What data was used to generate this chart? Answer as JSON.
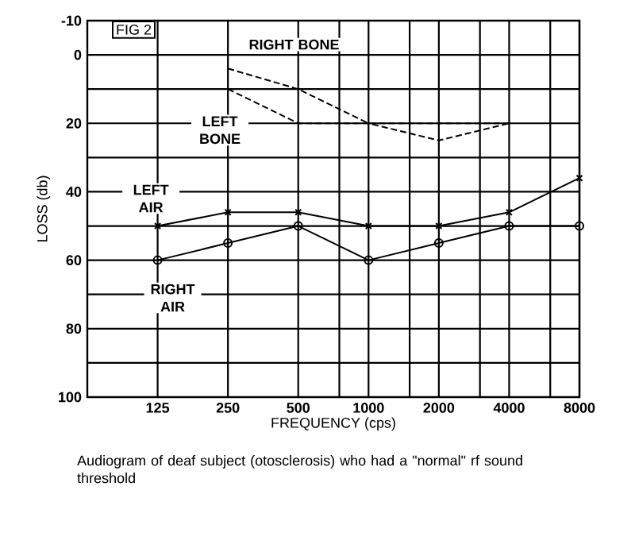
{
  "chart_data": {
    "type": "line",
    "xlabel": "FREQUENCY  (cps)",
    "ylabel": "LOSS  (db)",
    "log": "x",
    "grid": true,
    "legend": false,
    "x": [
      125,
      250,
      500,
      1000,
      2000,
      4000,
      8000
    ],
    "xlim": [
      62.5,
      8000
    ],
    "xticks": [
      125,
      250,
      500,
      {
        "value": 750,
        "label": null
      },
      1000,
      {
        "value": 1500,
        "label": null
      },
      2000,
      {
        "value": 3000,
        "label": null
      },
      4000,
      {
        "value": 6000,
        "label": null
      },
      8000
    ],
    "ylim": [
      100,
      -10
    ],
    "yticks": [
      -10,
      0,
      {
        "value": 10,
        "label": null
      },
      20,
      {
        "value": 30,
        "label": null
      },
      40,
      {
        "value": 50,
        "label": null
      },
      60,
      {
        "value": 70,
        "label": null
      },
      80,
      {
        "value": 90,
        "label": null
      },
      100
    ],
    "series": [
      {
        "name": "RIGHT  BONE",
        "color": "#000000",
        "line_style": "dashed",
        "marker": "none",
        "values": [
          null,
          4,
          10,
          20,
          20,
          20,
          null
        ]
      },
      {
        "name": "LEFT BONE",
        "color": "#000000",
        "line_style": "dashed",
        "marker": "none",
        "values": [
          null,
          10,
          20,
          20,
          25,
          20,
          null
        ]
      },
      {
        "name": "LEFT AIR",
        "color": "#000000",
        "line_style": "solid",
        "marker": "cross",
        "values": [
          50,
          46,
          46,
          50,
          50,
          46,
          36
        ]
      },
      {
        "name": "RIGHT AIR",
        "color": "#000000",
        "line_style": "solid",
        "marker": "circle",
        "values": [
          60,
          55,
          50,
          60,
          55,
          50,
          50
        ]
      }
    ],
    "annotations": [
      "FIG 2",
      "Audiogram of deaf subject  (otosclerosis)  who had a \"normal\"  rf  sound threshold"
    ]
  }
}
